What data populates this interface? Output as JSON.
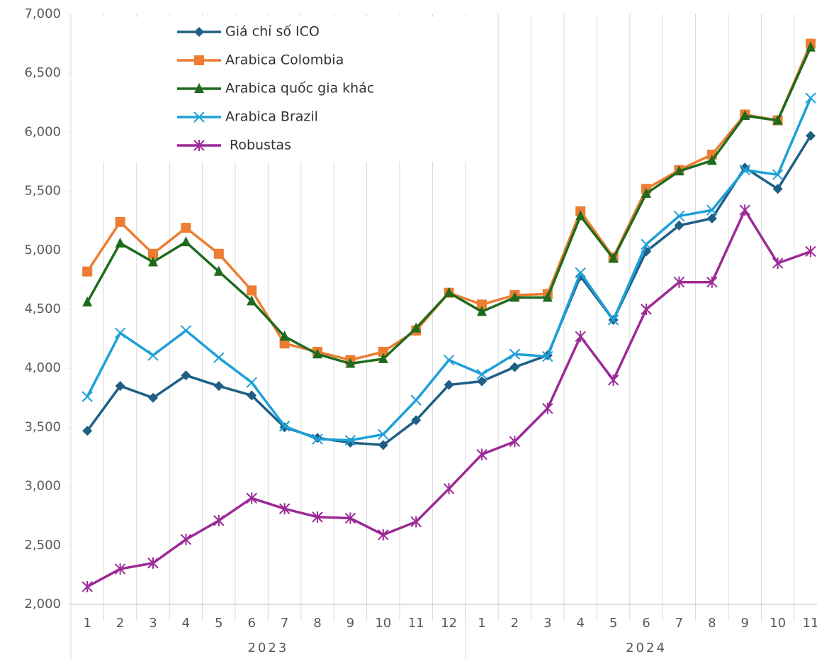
{
  "chart_data": {
    "type": "line",
    "categories": [
      "1",
      "2",
      "3",
      "4",
      "5",
      "6",
      "7",
      "8",
      "9",
      "10",
      "11",
      "12",
      "1",
      "2",
      "3",
      "4",
      "5",
      "6",
      "7",
      "8",
      "9",
      "10",
      "11"
    ],
    "x_groups": [
      {
        "label": "2023",
        "count": 12
      },
      {
        "label": "2024",
        "count": 11
      }
    ],
    "ylim": [
      2000,
      7000
    ],
    "yticks": [
      {
        "value": 2000,
        "label": "2,000"
      },
      {
        "value": 2500,
        "label": "2,500"
      },
      {
        "value": 3000,
        "label": "3,000"
      },
      {
        "value": 3500,
        "label": "3,500"
      },
      {
        "value": 4000,
        "label": "4,000"
      },
      {
        "value": 4500,
        "label": "4,500"
      },
      {
        "value": 5000,
        "label": "5,000"
      },
      {
        "value": 5500,
        "label": "5,500"
      },
      {
        "value": 6000,
        "label": "6,000"
      },
      {
        "value": 6500,
        "label": "6,500"
      },
      {
        "value": 7000,
        "label": "7,000"
      }
    ],
    "grid": true,
    "legend": "top-left",
    "series": [
      {
        "name": "Giá chỉ số ICO",
        "color": "#1f5f85",
        "marker": "diamond",
        "values": [
          3470,
          3850,
          3750,
          3940,
          3850,
          3770,
          3500,
          3410,
          3370,
          3350,
          3560,
          3860,
          3890,
          4010,
          4110,
          4780,
          4410,
          4990,
          5210,
          5270,
          5700,
          5520,
          5970
        ]
      },
      {
        "name": "Arabica Colombia",
        "color": "#ed7d31",
        "marker": "square",
        "values": [
          4820,
          5240,
          4970,
          5190,
          4970,
          4660,
          4210,
          4140,
          4070,
          4140,
          4320,
          4640,
          4540,
          4620,
          4630,
          5330,
          4940,
          5520,
          5680,
          5810,
          6150,
          6100,
          6750
        ]
      },
      {
        "name": "Arabica quốc gia khác",
        "color": "#1e6b1e",
        "marker": "triangle",
        "values": [
          4560,
          5060,
          4900,
          5070,
          4820,
          4570,
          4270,
          4120,
          4040,
          4080,
          4340,
          4640,
          4480,
          4600,
          4600,
          5290,
          4930,
          5480,
          5670,
          5760,
          6140,
          6100,
          6720
        ]
      },
      {
        "name": "Arabica Brazil",
        "color": "#1ea0d8",
        "marker": "x",
        "values": [
          3760,
          4300,
          4110,
          4320,
          4090,
          3880,
          3510,
          3400,
          3390,
          3440,
          3730,
          4070,
          3950,
          4120,
          4100,
          4810,
          4410,
          5050,
          5290,
          5340,
          5680,
          5640,
          6290
        ]
      },
      {
        "name": "Robustas",
        "color": "#9c2a96",
        "marker": "asterisk",
        "values": [
          2150,
          2300,
          2350,
          2550,
          2710,
          2900,
          2810,
          2740,
          2730,
          2590,
          2700,
          2980,
          3270,
          3380,
          3660,
          4270,
          3900,
          4500,
          4730,
          4730,
          5340,
          4890,
          4990
        ]
      }
    ]
  }
}
